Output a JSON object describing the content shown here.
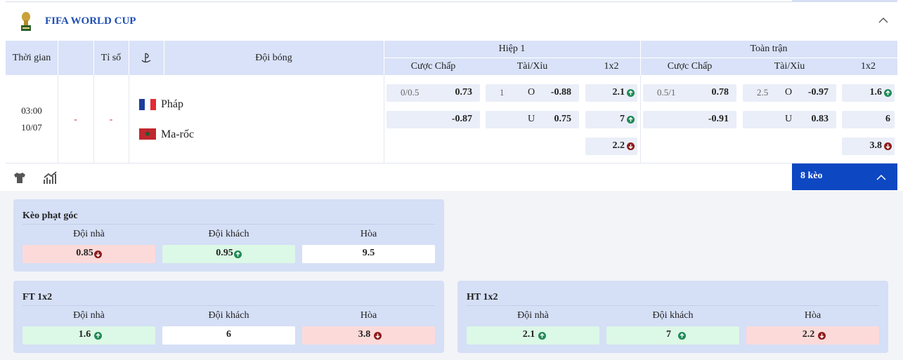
{
  "league": {
    "title": "FIFA WORLD CUP"
  },
  "header": {
    "time": "Thời gian",
    "score": "Tỉ số",
    "teams": "Đội bóng",
    "first_half": {
      "title": "Hiệp 1",
      "handicap": "Cược Chấp",
      "over_under": "Tài/Xỉu",
      "x12": "1x2"
    },
    "full_time": {
      "title": "Toàn trận",
      "handicap": "Cược Chấp",
      "over_under": "Tài/Xỉu",
      "x12": "1x2"
    }
  },
  "match": {
    "time": "03:00",
    "date": "10/07",
    "score_home": "-",
    "score_away": "-",
    "home": "Pháp",
    "away": "Ma-rốc",
    "first_half": {
      "handicap": {
        "line": "0/0.5",
        "home": "0.73",
        "away": "-0.87"
      },
      "over_under": {
        "line": "1",
        "over_label": "O",
        "over": "-0.88",
        "under_label": "U",
        "under": "0.75"
      },
      "x12": [
        {
          "value": "2.1",
          "trend": "up"
        },
        {
          "value": "7",
          "trend": "up"
        },
        {
          "value": "2.2",
          "trend": "down"
        }
      ]
    },
    "full_time": {
      "handicap": {
        "line": "0.5/1",
        "home": "0.78",
        "away": "-0.91"
      },
      "over_under": {
        "line": "2.5",
        "over_label": "O",
        "over": "-0.97",
        "under_label": "U",
        "under": "0.83"
      },
      "x12": [
        {
          "value": "1.6",
          "trend": "up"
        },
        {
          "value": "6",
          "trend": null
        },
        {
          "value": "3.8",
          "trend": "down"
        }
      ]
    }
  },
  "more_button": "8 kèo",
  "panels": [
    {
      "title": "Kèo phạt góc",
      "columns": [
        "Đội nhà",
        "Đội khách",
        "Hòa"
      ],
      "odds": [
        {
          "value": "0.85",
          "trend": "down"
        },
        {
          "value": "0.95",
          "trend": "up"
        },
        {
          "value": "9.5",
          "trend": null
        }
      ]
    },
    {
      "title": "FT 1x2",
      "columns": [
        "Đội nhà",
        "Đội khách",
        "Hòa"
      ],
      "odds": [
        {
          "value": "1.6",
          "trend": "up"
        },
        {
          "value": "6",
          "trend": null
        },
        {
          "value": "3.8",
          "trend": "down"
        }
      ]
    },
    {
      "title": "HT 1x2",
      "columns": [
        "Đội nhà",
        "Đội khách",
        "Hòa"
      ],
      "odds": [
        {
          "value": "2.1",
          "trend": "up"
        },
        {
          "value": "7",
          "trend": "up"
        },
        {
          "value": "2.2",
          "trend": "down"
        }
      ]
    }
  ]
}
